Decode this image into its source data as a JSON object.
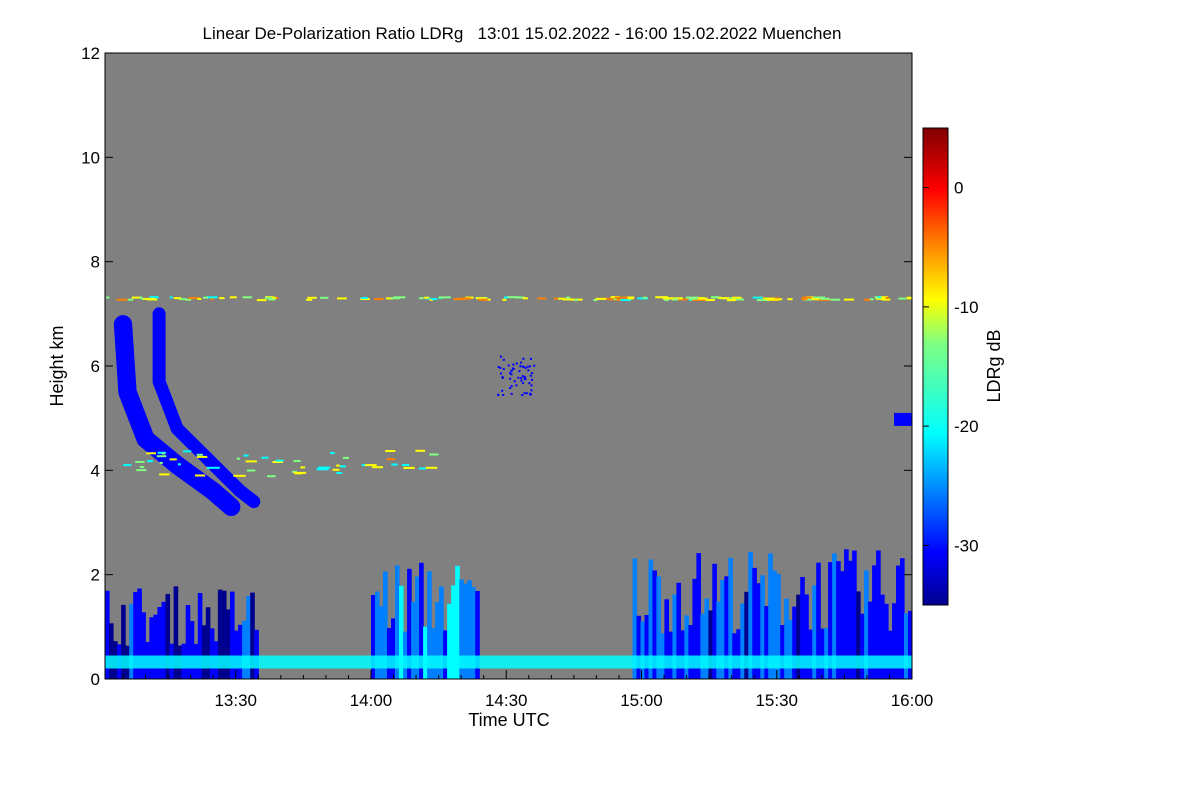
{
  "chart_data": {
    "type": "heatmap",
    "title": "Linear De-Polarization Ratio LDRg   13:01 15.02.2022 - 16:00 15.02.2022 Muenchen",
    "xlabel": "Time UTC",
    "ylabel": "Height km",
    "colorbar_label": "LDRg dB",
    "x_range_minutes_utc": [
      781,
      960
    ],
    "x_ticks": [
      {
        "minute": 810,
        "label": "13:30"
      },
      {
        "minute": 840,
        "label": "14:00"
      },
      {
        "minute": 870,
        "label": "14:30"
      },
      {
        "minute": 900,
        "label": "15:00"
      },
      {
        "minute": 930,
        "label": "15:30"
      },
      {
        "minute": 960,
        "label": "16:00"
      }
    ],
    "ylim_km": [
      0,
      12
    ],
    "y_ticks": [
      {
        "value": 0,
        "label": "0"
      },
      {
        "value": 2,
        "label": "2"
      },
      {
        "value": 4,
        "label": "4"
      },
      {
        "value": 6,
        "label": "6"
      },
      {
        "value": 8,
        "label": "8"
      },
      {
        "value": 10,
        "label": "10"
      },
      {
        "value": 12,
        "label": "12"
      }
    ],
    "colorbar_range_db": [
      -35,
      5
    ],
    "colorbar_ticks": [
      {
        "value": 0,
        "label": "0"
      },
      {
        "value": -10,
        "label": "-10"
      },
      {
        "value": -20,
        "label": "-20"
      },
      {
        "value": -30,
        "label": "-30"
      }
    ],
    "no_data_color": "#808080",
    "colormap": [
      "#00008f",
      "#0000ff",
      "#0080ff",
      "#00ffff",
      "#80ff80",
      "#ffff00",
      "#ff8000",
      "#ff0000",
      "#800000"
    ],
    "features": [
      {
        "name": "descending-fallstreak-1",
        "ldr_db": -32,
        "path": [
          [
            785,
            6.8
          ],
          [
            786,
            5.5
          ],
          [
            790,
            4.6
          ],
          [
            797,
            4.1
          ],
          [
            805,
            3.6
          ],
          [
            809,
            3.3
          ]
        ],
        "thickness_km": 0.35
      },
      {
        "name": "descending-fallstreak-2",
        "ldr_db": -32,
        "path": [
          [
            793,
            7.0
          ],
          [
            793,
            5.7
          ],
          [
            797,
            4.8
          ],
          [
            804,
            4.2
          ],
          [
            811,
            3.6
          ],
          [
            814,
            3.4
          ]
        ],
        "thickness_km": 0.25
      },
      {
        "name": "speckle-patch",
        "ldr_db": -31,
        "x": [
          868,
          876
        ],
        "y": [
          5.4,
          6.2
        ]
      },
      {
        "name": "cloud-edge-5km",
        "ldr_db": -30,
        "x": [
          956,
          960
        ],
        "y": [
          4.85,
          5.1
        ]
      },
      {
        "name": "thin-layer-7.3km",
        "ldr_db": -12,
        "x": [
          781,
          960
        ],
        "y": [
          7.28,
          7.34
        ]
      },
      {
        "name": "scattered-returns-4km",
        "ldr_db": -14,
        "x": [
          784,
          855
        ],
        "y": [
          3.9,
          4.4
        ]
      },
      {
        "name": "boundary-layer-block-1",
        "ldr_db": -31,
        "x": [
          781,
          815
        ],
        "y": [
          0,
          1.8
        ]
      },
      {
        "name": "boundary-layer-block-2",
        "ldr_db": -25,
        "x": [
          840,
          864
        ],
        "y": [
          0,
          2.3
        ]
      },
      {
        "name": "boundary-layer-block-3",
        "ldr_db": -29,
        "x": [
          898,
          960
        ],
        "y": [
          0,
          2.5
        ]
      },
      {
        "name": "near-surface-layer",
        "ldr_db": -20,
        "x": [
          781,
          960
        ],
        "y": [
          0.2,
          0.45
        ]
      }
    ]
  }
}
